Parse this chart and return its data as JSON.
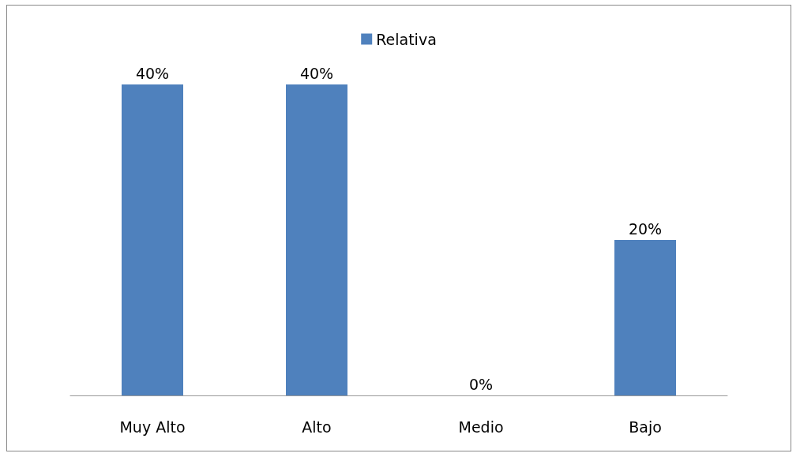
{
  "chart_data": {
    "type": "bar",
    "categories": [
      "Muy Alto",
      "Alto",
      "Medio",
      "Bajo"
    ],
    "series": [
      {
        "name": "Relativa",
        "color": "#4f81bd",
        "values": [
          40,
          40,
          0,
          20
        ],
        "value_labels": [
          "40%",
          "40%",
          "0%",
          "20%"
        ]
      }
    ],
    "legend": "top"
  }
}
